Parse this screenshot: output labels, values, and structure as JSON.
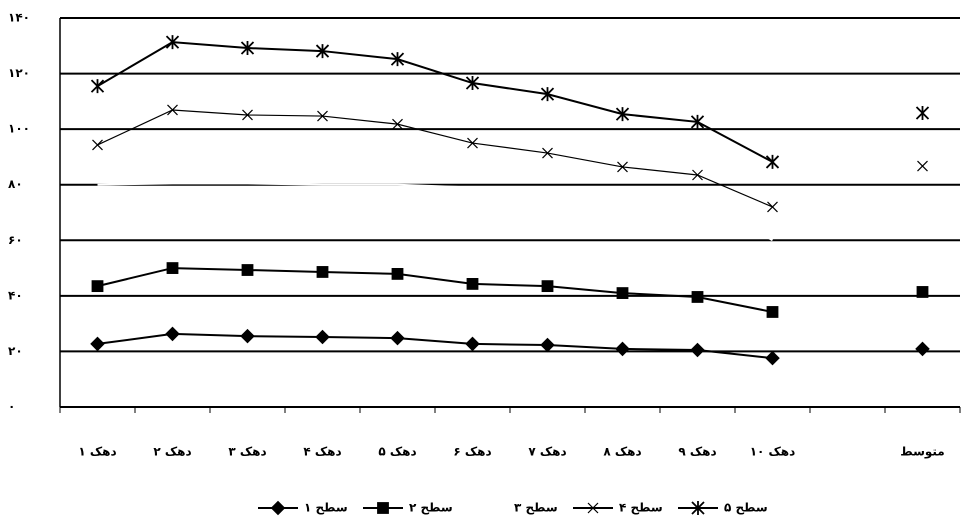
{
  "chart_data": {
    "type": "line",
    "categories": [
      "دهک ۱",
      "دهک ۲",
      "دهک ۳",
      "دهک ۴",
      "دهک ۵",
      "دهک ۶",
      "دهک ۷",
      "دهک ۸",
      "دهک ۹",
      "دهک ۱۰",
      null,
      "متوسط"
    ],
    "series": [
      {
        "name": "سطح ۱",
        "color": "#000000",
        "marker": "diamond",
        "values": [
          22.7,
          26.3,
          25.5,
          25.2,
          24.8,
          22.7,
          22.3,
          20.9,
          20.5,
          17.6,
          null,
          20.9
        ]
      },
      {
        "name": "سطح ۲",
        "color": "#000000",
        "marker": "square",
        "values": [
          43.5,
          50,
          49.3,
          48.6,
          47.9,
          44.3,
          43.5,
          41,
          39.6,
          34.2,
          null,
          41.4
        ]
      },
      {
        "name": "سطح ۳",
        "color": "#ffffff",
        "marker": "none",
        "values": [
          80,
          80.5,
          80.5,
          80,
          80,
          79,
          78,
          77,
          76,
          60,
          null,
          72
        ]
      },
      {
        "name": "سطح ۴",
        "color": "#000000",
        "marker": "x",
        "values": [
          94.3,
          106.9,
          105.1,
          104.7,
          101.8,
          95,
          91.4,
          86.4,
          83.5,
          72,
          null,
          86.7
        ]
      },
      {
        "name": "سطح ۵",
        "color": "#000000",
        "marker": "star",
        "values": [
          115.5,
          131.3,
          129.2,
          128.1,
          125.2,
          116.6,
          112.6,
          105.4,
          102.6,
          88.2,
          null,
          105.8
        ]
      }
    ],
    "ylim": [
      0,
      140
    ],
    "yticks": [
      {
        "value": 0,
        "label": "۰"
      },
      {
        "value": 20,
        "label": "۲۰"
      },
      {
        "value": 40,
        "label": "۴۰"
      },
      {
        "value": 60,
        "label": "۶۰"
      },
      {
        "value": 80,
        "label": "۸۰"
      },
      {
        "value": 100,
        "label": "۱۰۰"
      },
      {
        "value": 120,
        "label": "۱۲۰"
      },
      {
        "value": 140,
        "label": "۱۴۰"
      }
    ],
    "grid": true
  }
}
